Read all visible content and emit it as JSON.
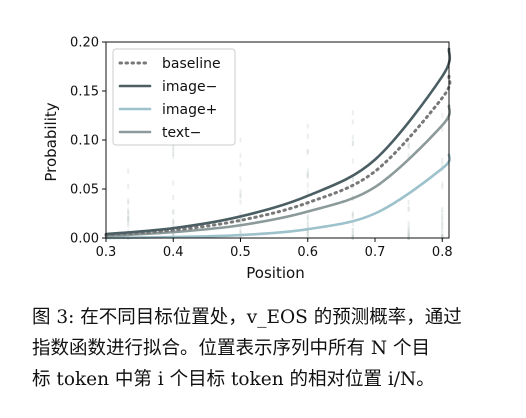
{
  "chart_data": {
    "type": "line",
    "title": "",
    "xlabel": "Position",
    "ylabel": "Probability",
    "xlim": [
      0.3,
      0.81
    ],
    "ylim": [
      0.0,
      0.2
    ],
    "x_ticks": [
      "0.3",
      "0.4",
      "0.5",
      "0.6",
      "0.7",
      "0.8"
    ],
    "x_tick_values": [
      0.3,
      0.4,
      0.5,
      0.6,
      0.7,
      0.8
    ],
    "y_ticks": [
      "0.00",
      "0.05",
      "0.10",
      "0.15",
      "0.20"
    ],
    "y_tick_values": [
      0.0,
      0.05,
      0.1,
      0.15,
      0.2
    ],
    "grid": false,
    "legend_position": "top-left",
    "series": [
      {
        "name": "baseline",
        "color": "#787878",
        "style": "dotted",
        "x": [
          0.3,
          0.4,
          0.5,
          0.6,
          0.7,
          0.8,
          0.81
        ],
        "y": [
          0.003,
          0.008,
          0.018,
          0.036,
          0.068,
          0.143,
          0.165
        ]
      },
      {
        "name": "image−",
        "color": "#4a5e63",
        "style": "solid",
        "x": [
          0.3,
          0.4,
          0.5,
          0.6,
          0.7,
          0.8,
          0.81
        ],
        "y": [
          0.004,
          0.01,
          0.022,
          0.043,
          0.08,
          0.165,
          0.193
        ]
      },
      {
        "name": "image+",
        "color": "#9dc2cc",
        "style": "solid",
        "x": [
          0.3,
          0.4,
          0.5,
          0.6,
          0.7,
          0.8,
          0.81
        ],
        "y": [
          0.0,
          0.001,
          0.003,
          0.009,
          0.025,
          0.071,
          0.085
        ]
      },
      {
        "name": "text−",
        "color": "#8c9a9a",
        "style": "solid",
        "x": [
          0.3,
          0.4,
          0.5,
          0.6,
          0.7,
          0.8,
          0.81
        ],
        "y": [
          0.002,
          0.006,
          0.013,
          0.027,
          0.052,
          0.115,
          0.135
        ]
      }
    ]
  },
  "caption": {
    "lines": [
      "图 3: 在不同目标位置处，v_EOS 的预测概率，通过",
      "指数函数进行拟合。位置表示序列中所有 N 个目",
      "标 token 中第 i 个目标 token 的相对位置 i/N。"
    ]
  },
  "colors": {
    "axis": "#111111",
    "scatter": "#c8d0d2"
  }
}
